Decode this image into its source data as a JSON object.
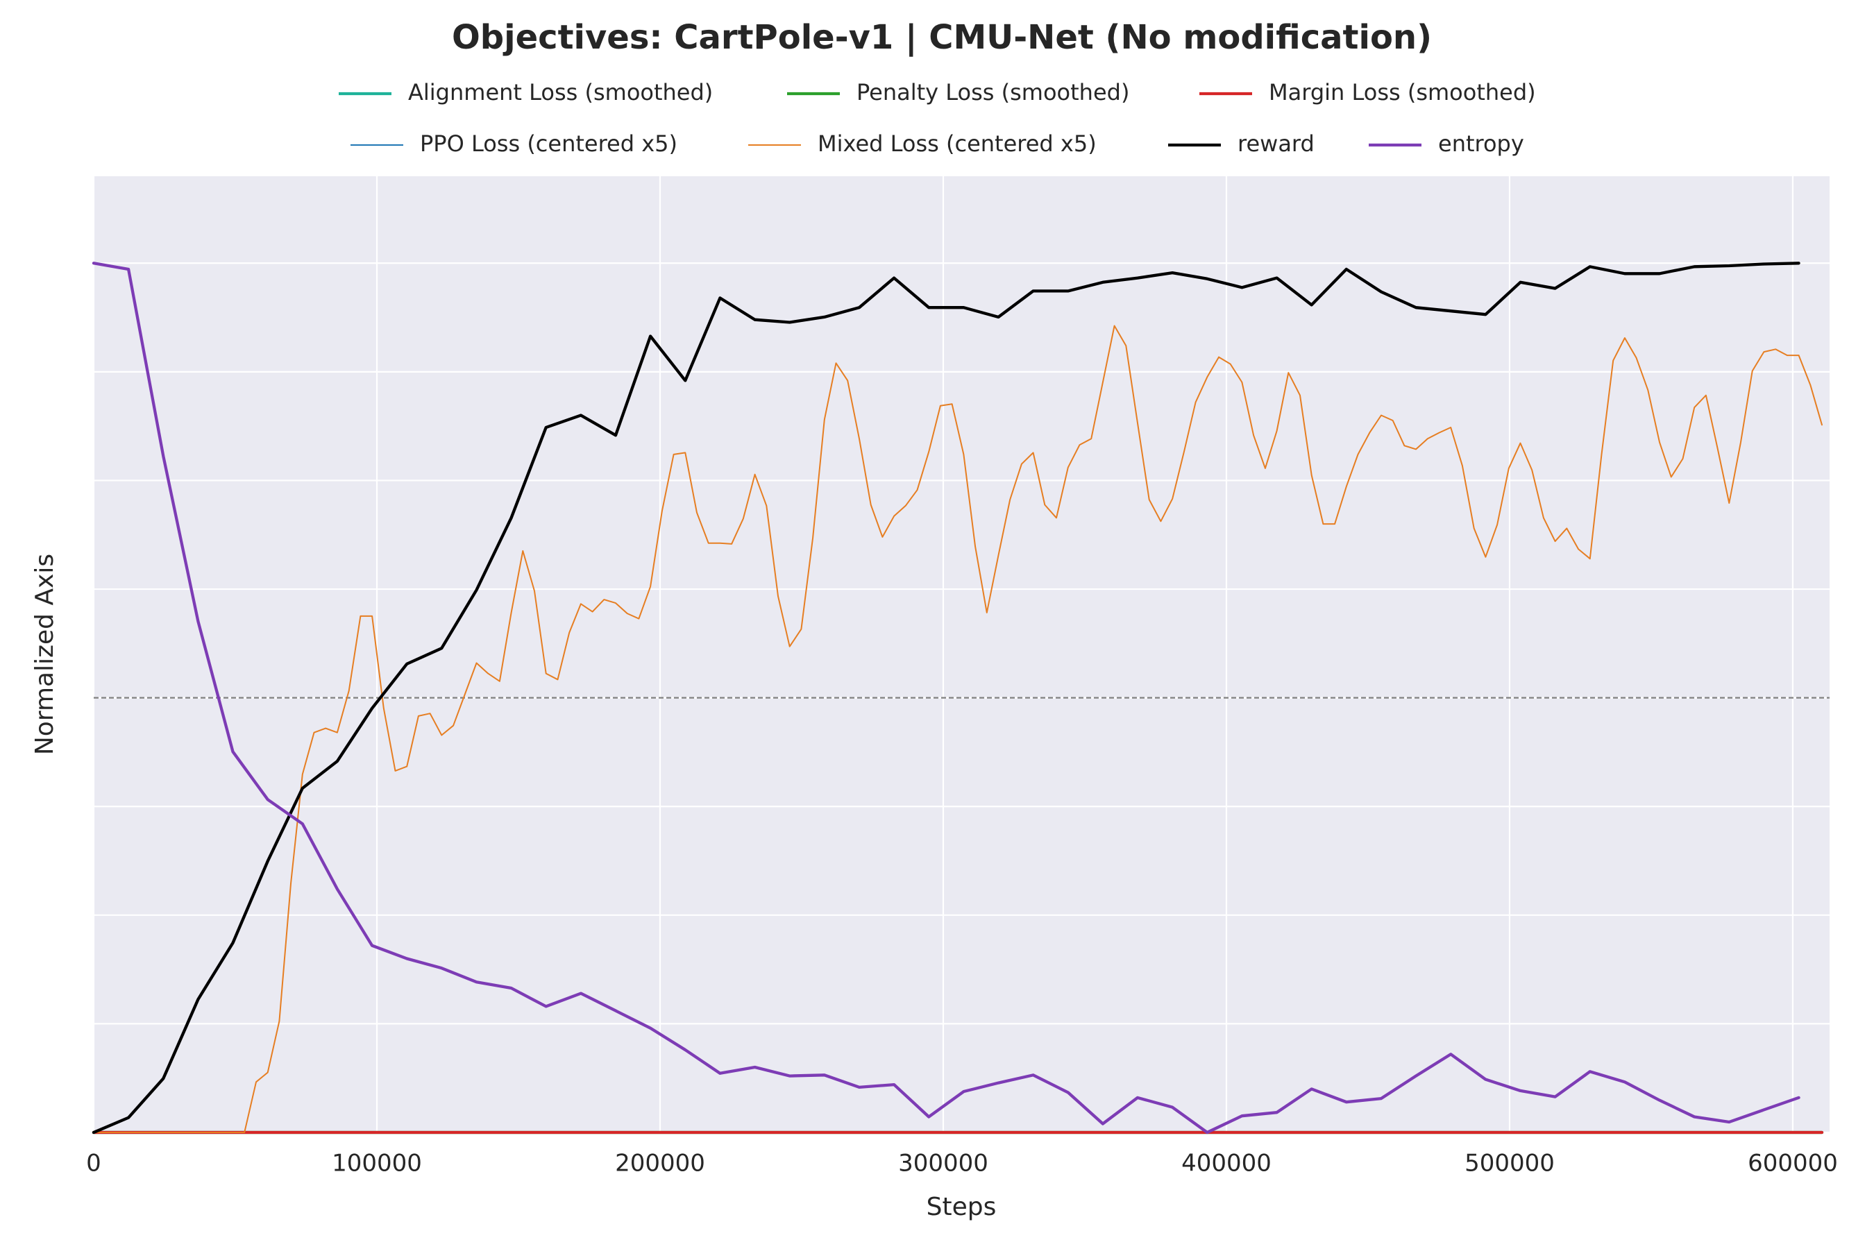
{
  "chart_data": {
    "type": "line",
    "title": "Objectives: CartPole-v1 | CMU-Net (No modification)",
    "xlabel": "Steps",
    "ylabel": "Normalized Axis",
    "xlim": [
      0,
      613000
    ],
    "xticks": [
      0,
      100000,
      200000,
      300000,
      400000,
      500000,
      600000
    ],
    "ylim": [
      0,
      1.1
    ],
    "yticks": [
      0,
      0.125,
      0.25,
      0.375,
      0.5,
      0.625,
      0.75,
      0.875,
      1.0
    ],
    "grid": true,
    "hline": 0.5,
    "legend": "top",
    "series": [
      {
        "name": "Alignment Loss (smoothed)",
        "color": "#1fb39a",
        "x": [
          0,
          610304
        ],
        "values": [
          0,
          0
        ]
      },
      {
        "name": "Penalty Loss (smoothed)",
        "color": "#2ca02c",
        "x": [
          0,
          610304
        ],
        "values": [
          0,
          0
        ]
      },
      {
        "name": "Margin Loss (smoothed)",
        "color": "#d62728",
        "x": [
          0,
          610304
        ],
        "values": [
          0,
          0
        ]
      },
      {
        "name": "PPO Loss (centered x5)",
        "color": "#1f77b4",
        "x": [
          0,
          610304
        ],
        "values": [
          null,
          null
        ]
      },
      {
        "name": "Mixed Loss (centered x5)",
        "color": "#e67e22",
        "x": [
          0,
          4096,
          8192,
          12288,
          16384,
          20480,
          24576,
          28672,
          32768,
          36864,
          40960,
          45056,
          49152,
          53248,
          57344,
          61440,
          65536,
          69632,
          73728,
          77824,
          81920,
          86016,
          90112,
          94208,
          98304,
          102400,
          106496,
          110592,
          114688,
          118784,
          122880,
          126976,
          131072,
          135168,
          139264,
          143360,
          147456,
          151552,
          155648,
          159744,
          163840,
          167936,
          172032,
          176128,
          180224,
          184320,
          188416,
          192512,
          196608,
          200704,
          204800,
          208896,
          212992,
          217088,
          221184,
          225280,
          229376,
          233472,
          237568,
          241664,
          245760,
          249856,
          253952,
          258048,
          262144,
          266240,
          270336,
          274432,
          278528,
          282624,
          286720,
          290816,
          294912,
          299008,
          303104,
          307200,
          311296,
          315392,
          319488,
          323584,
          327680,
          331776,
          335872,
          339968,
          344064,
          348160,
          352256,
          356352,
          360448,
          364544,
          368640,
          372736,
          376832,
          380928,
          385024,
          389120,
          393216,
          397312,
          401408,
          405504,
          409600,
          413696,
          417792,
          421888,
          425984,
          430080,
          434176,
          438272,
          442368,
          446464,
          450560,
          454656,
          458752,
          462848,
          466944,
          471040,
          475136,
          479232,
          483328,
          487424,
          491520,
          495616,
          499712,
          503808,
          507904,
          512000,
          516096,
          520192,
          524288,
          528384,
          532480,
          536576,
          540672,
          544768,
          548864,
          552960,
          557056,
          561152,
          565248,
          569344,
          573440,
          577536,
          581632,
          585728,
          589824,
          593920,
          598016,
          602112,
          606208,
          610304
        ],
        "values": [
          0,
          0,
          0,
          0,
          0,
          0,
          0,
          0,
          0,
          0,
          0,
          0,
          0,
          0,
          0.058,
          0.069,
          0.128,
          0.287,
          0.412,
          0.46,
          0.465,
          0.46,
          0.508,
          0.594,
          0.594,
          0.488,
          0.416,
          0.421,
          0.479,
          0.482,
          0.457,
          0.468,
          0.504,
          0.54,
          0.528,
          0.519,
          0.598,
          0.669,
          0.623,
          0.528,
          0.521,
          0.575,
          0.608,
          0.599,
          0.613,
          0.609,
          0.597,
          0.591,
          0.628,
          0.715,
          0.78,
          0.782,
          0.713,
          0.678,
          0.678,
          0.677,
          0.706,
          0.757,
          0.721,
          0.617,
          0.559,
          0.579,
          0.684,
          0.82,
          0.885,
          0.865,
          0.798,
          0.722,
          0.685,
          0.709,
          0.721,
          0.739,
          0.783,
          0.836,
          0.838,
          0.78,
          0.674,
          0.598,
          0.664,
          0.728,
          0.769,
          0.782,
          0.722,
          0.707,
          0.765,
          0.791,
          0.798,
          0.863,
          0.928,
          0.905,
          0.816,
          0.728,
          0.703,
          0.729,
          0.783,
          0.84,
          0.869,
          0.892,
          0.884,
          0.863,
          0.802,
          0.764,
          0.807,
          0.874,
          0.848,
          0.756,
          0.7,
          0.7,
          0.743,
          0.78,
          0.805,
          0.825,
          0.819,
          0.79,
          0.786,
          0.798,
          0.805,
          0.811,
          0.767,
          0.695,
          0.662,
          0.699,
          0.764,
          0.793,
          0.762,
          0.707,
          0.68,
          0.695,
          0.671,
          0.66,
          0.78,
          0.888,
          0.914,
          0.891,
          0.854,
          0.794,
          0.754,
          0.775,
          0.834,
          0.848,
          0.787,
          0.724,
          0.794,
          0.876,
          0.898,
          0.901,
          0.894,
          0.894,
          0.86,
          0.814
        ]
      },
      {
        "name": "reward",
        "color": "#000000",
        "x": [
          0,
          12288,
          24576,
          36864,
          49152,
          61440,
          73728,
          86016,
          98304,
          110592,
          122880,
          135168,
          147456,
          159744,
          172032,
          184320,
          196608,
          208896,
          221184,
          233472,
          245760,
          258048,
          270336,
          282624,
          294912,
          307200,
          319488,
          331776,
          344064,
          356352,
          368640,
          380928,
          393216,
          405504,
          417792,
          430080,
          442368,
          454656,
          466944,
          479232,
          491520,
          503808,
          516096,
          528384,
          540672,
          552960,
          565248,
          577536,
          589824,
          602112
        ],
        "values": [
          0,
          0.017,
          0.062,
          0.153,
          0.218,
          0.312,
          0.396,
          0.427,
          0.488,
          0.539,
          0.557,
          0.624,
          0.707,
          0.811,
          0.825,
          0.802,
          0.916,
          0.865,
          0.96,
          0.935,
          0.932,
          0.938,
          0.949,
          0.983,
          0.949,
          0.949,
          0.938,
          0.968,
          0.968,
          0.978,
          0.983,
          0.989,
          0.982,
          0.972,
          0.983,
          0.952,
          0.993,
          0.967,
          0.949,
          0.945,
          0.941,
          0.978,
          0.971,
          0.996,
          0.988,
          0.988,
          0.996,
          0.997,
          0.999,
          1.0
        ]
      },
      {
        "name": "entropy",
        "color": "#7d3cb5",
        "x": [
          0,
          12288,
          24576,
          36864,
          49152,
          61440,
          73728,
          86016,
          98304,
          110592,
          122880,
          135168,
          147456,
          159744,
          172032,
          184320,
          196608,
          208896,
          221184,
          233472,
          245760,
          258048,
          270336,
          282624,
          294912,
          307200,
          319488,
          331776,
          344064,
          356352,
          368640,
          380928,
          393216,
          405504,
          417792,
          430080,
          442368,
          454656,
          466944,
          479232,
          491520,
          503808,
          516096,
          528384,
          540672,
          552960,
          565248,
          577536,
          589824,
          602112
        ],
        "values": [
          1.0,
          0.993,
          0.778,
          0.588,
          0.438,
          0.383,
          0.355,
          0.28,
          0.215,
          0.2,
          0.189,
          0.173,
          0.166,
          0.145,
          0.16,
          0.14,
          0.12,
          0.095,
          0.068,
          0.075,
          0.065,
          0.066,
          0.052,
          0.055,
          0.018,
          0.047,
          0.057,
          0.066,
          0.046,
          0.01,
          0.04,
          0.029,
          0,
          0.019,
          0.023,
          0.05,
          0.035,
          0.039,
          0.065,
          0.09,
          0.061,
          0.048,
          0.041,
          0.07,
          0.058,
          0.037,
          0.018,
          0.012,
          0.026,
          0.04
        ]
      }
    ]
  }
}
